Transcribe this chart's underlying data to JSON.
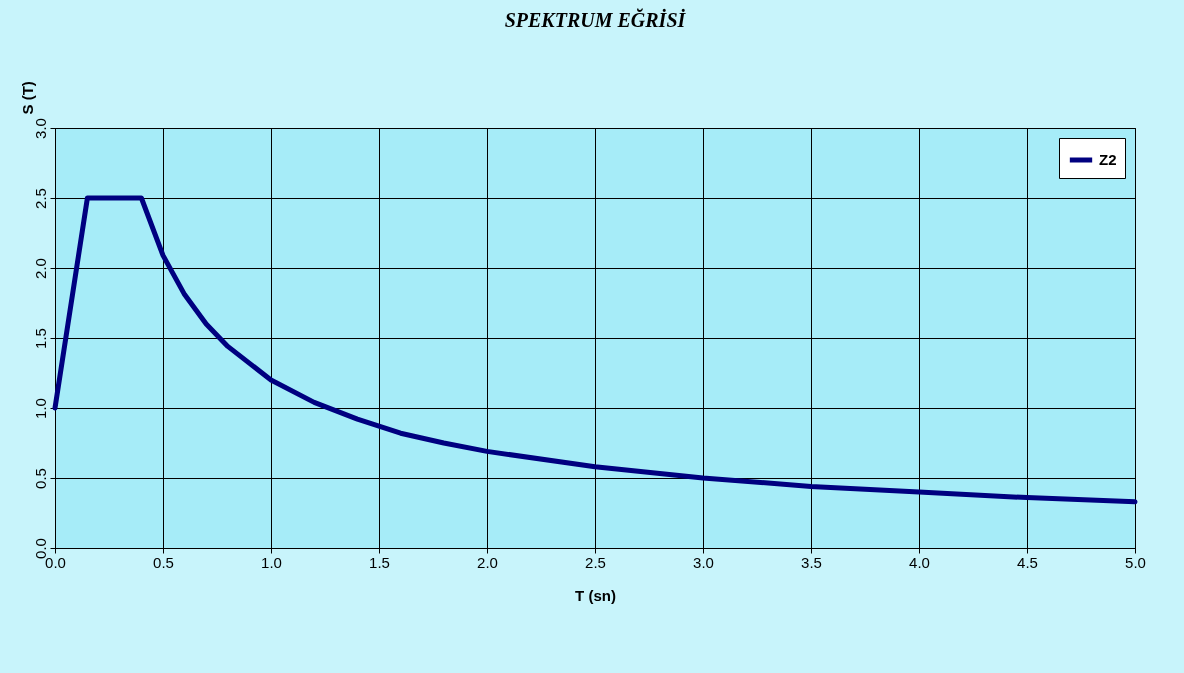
{
  "chart_data": {
    "type": "line",
    "title": "SPEKTRUM EĞRİSİ",
    "xlabel": "T (sn)",
    "ylabel": "S (T)",
    "x": [
      0,
      0.15,
      0.4,
      0.5,
      0.6,
      0.7,
      0.8,
      1.0,
      1.2,
      1.4,
      1.6,
      1.8,
      2.0,
      2.5,
      3.0,
      3.5,
      4.0,
      4.5,
      5.0
    ],
    "series": [
      {
        "name": "Z2",
        "color": "#000080",
        "values": [
          1.0,
          2.5,
          2.5,
          2.09,
          1.81,
          1.6,
          1.44,
          1.2,
          1.04,
          0.92,
          0.82,
          0.75,
          0.69,
          0.58,
          0.5,
          0.44,
          0.4,
          0.36,
          0.33
        ]
      }
    ],
    "xlim": [
      0,
      5
    ],
    "ylim": [
      0,
      3
    ],
    "xticks": [
      {
        "value": 0,
        "label": "0.0"
      },
      0.5,
      {
        "value": 1,
        "label": "1.0"
      },
      1.5,
      {
        "value": 2,
        "label": "2.0"
      },
      2.5,
      {
        "value": 3,
        "label": "3.0"
      },
      3.5,
      {
        "value": 4,
        "label": "4.0"
      },
      4.5,
      {
        "value": 5,
        "label": "5.0"
      }
    ],
    "yticks": [
      {
        "value": 0,
        "label": "0.0"
      },
      0.5,
      {
        "value": 1,
        "label": "1.0"
      },
      1.5,
      {
        "value": 2,
        "label": "2.0"
      },
      2.5,
      {
        "value": 3,
        "label": "3.0"
      }
    ],
    "grid": true,
    "legend": "top right",
    "marker": "none",
    "line_style": "solid"
  }
}
